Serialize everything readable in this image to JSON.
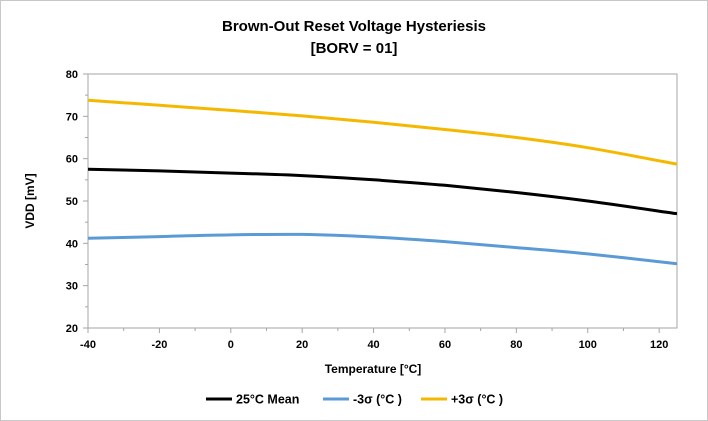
{
  "chart_data": {
    "type": "line",
    "title": "Brown-Out Reset Voltage Hysteriesis",
    "subtitle": "[BORV = 01]",
    "xlabel": "Temperature [°C]",
    "ylabel": "VDD [mV]",
    "xlim": [
      -40,
      125
    ],
    "ylim": [
      20,
      80
    ],
    "xticks": [
      -40,
      -20,
      0,
      20,
      40,
      60,
      80,
      100,
      120
    ],
    "yticks": [
      20,
      30,
      40,
      50,
      60,
      70,
      80
    ],
    "grid": false,
    "legend_position": "bottom",
    "series": [
      {
        "name": "25°C Mean",
        "color": "#000000",
        "x": [
          -40,
          -20,
          0,
          20,
          40,
          60,
          80,
          100,
          125
        ],
        "values": [
          57.5,
          57.1,
          56.6,
          56.0,
          55.0,
          53.7,
          52.0,
          50.0,
          47.0
        ]
      },
      {
        "name": "-3σ (°C )",
        "color": "#5b9bd5",
        "x": [
          -40,
          -20,
          0,
          20,
          40,
          60,
          80,
          100,
          125
        ],
        "values": [
          41.2,
          41.6,
          42.0,
          42.1,
          41.5,
          40.4,
          39.0,
          37.5,
          35.2
        ]
      },
      {
        "name": "+3σ (°C )",
        "color": "#f5b800",
        "x": [
          -40,
          -20,
          0,
          20,
          40,
          60,
          80,
          100,
          125
        ],
        "values": [
          73.8,
          72.6,
          71.4,
          70.1,
          68.6,
          66.9,
          65.0,
          62.6,
          58.7
        ]
      }
    ]
  }
}
